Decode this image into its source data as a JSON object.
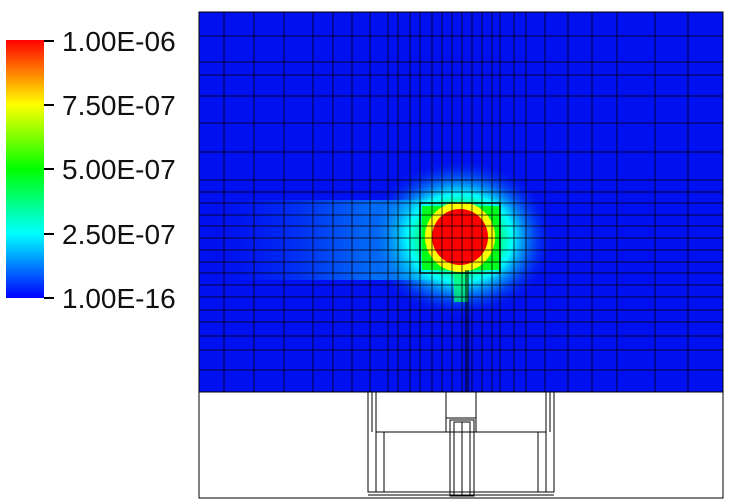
{
  "colorbar": {
    "colors": [
      "#0000ff",
      "#00ffff",
      "#00ff00",
      "#ffff00",
      "#ff0000"
    ],
    "labels": [
      "1.00E-06",
      "7.50E-07",
      "5.00E-07",
      "2.50E-07",
      "1.00E-16"
    ]
  },
  "field": {
    "background_color": "#0010f0",
    "grid_color": "#000000",
    "hotspot_color": "#ff0000"
  }
}
